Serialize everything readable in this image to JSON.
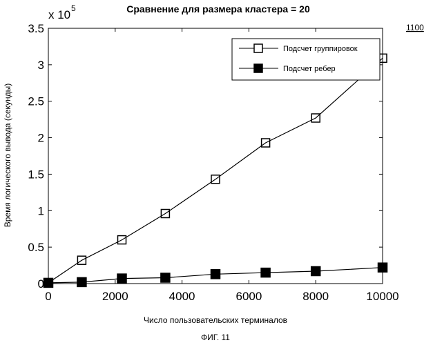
{
  "figure_ref": "1100",
  "caption": "ФИГ. 11",
  "chart_data": {
    "type": "line",
    "title": "Сравнение для размера кластера = 20",
    "xlabel": "Число пользовательских терминалов",
    "ylabel": "Время логического вывода (секунды)",
    "y_multiplier_label": "x 10",
    "y_multiplier_exponent": "5",
    "xlim": [
      0,
      10000
    ],
    "ylim": [
      0,
      3.5
    ],
    "x_ticks": [
      0,
      2000,
      4000,
      6000,
      8000,
      10000
    ],
    "x_tick_labels": [
      "0",
      "2000",
      "4000",
      "6000",
      "8000",
      "10000"
    ],
    "y_ticks": [
      0,
      0.5,
      1,
      1.5,
      2,
      2.5,
      3,
      3.5
    ],
    "y_tick_labels": [
      "0",
      "0.5",
      "1",
      "1.5",
      "2",
      "2.5",
      "3",
      "3.5"
    ],
    "legend_position": "top-right",
    "grid": false,
    "series": [
      {
        "name": "Подсчет группировок",
        "marker": "open-square",
        "color": "#000000",
        "x": [
          0,
          1000,
          2200,
          3500,
          5000,
          6500,
          8000,
          10000
        ],
        "y": [
          0.01,
          0.32,
          0.6,
          0.96,
          1.43,
          1.93,
          2.27,
          3.09
        ]
      },
      {
        "name": "Подсчет ребер",
        "marker": "filled-square",
        "color": "#000000",
        "x": [
          0,
          1000,
          2200,
          3500,
          5000,
          6500,
          8000,
          10000
        ],
        "y": [
          0.01,
          0.02,
          0.07,
          0.08,
          0.13,
          0.15,
          0.17,
          0.22
        ]
      }
    ]
  }
}
